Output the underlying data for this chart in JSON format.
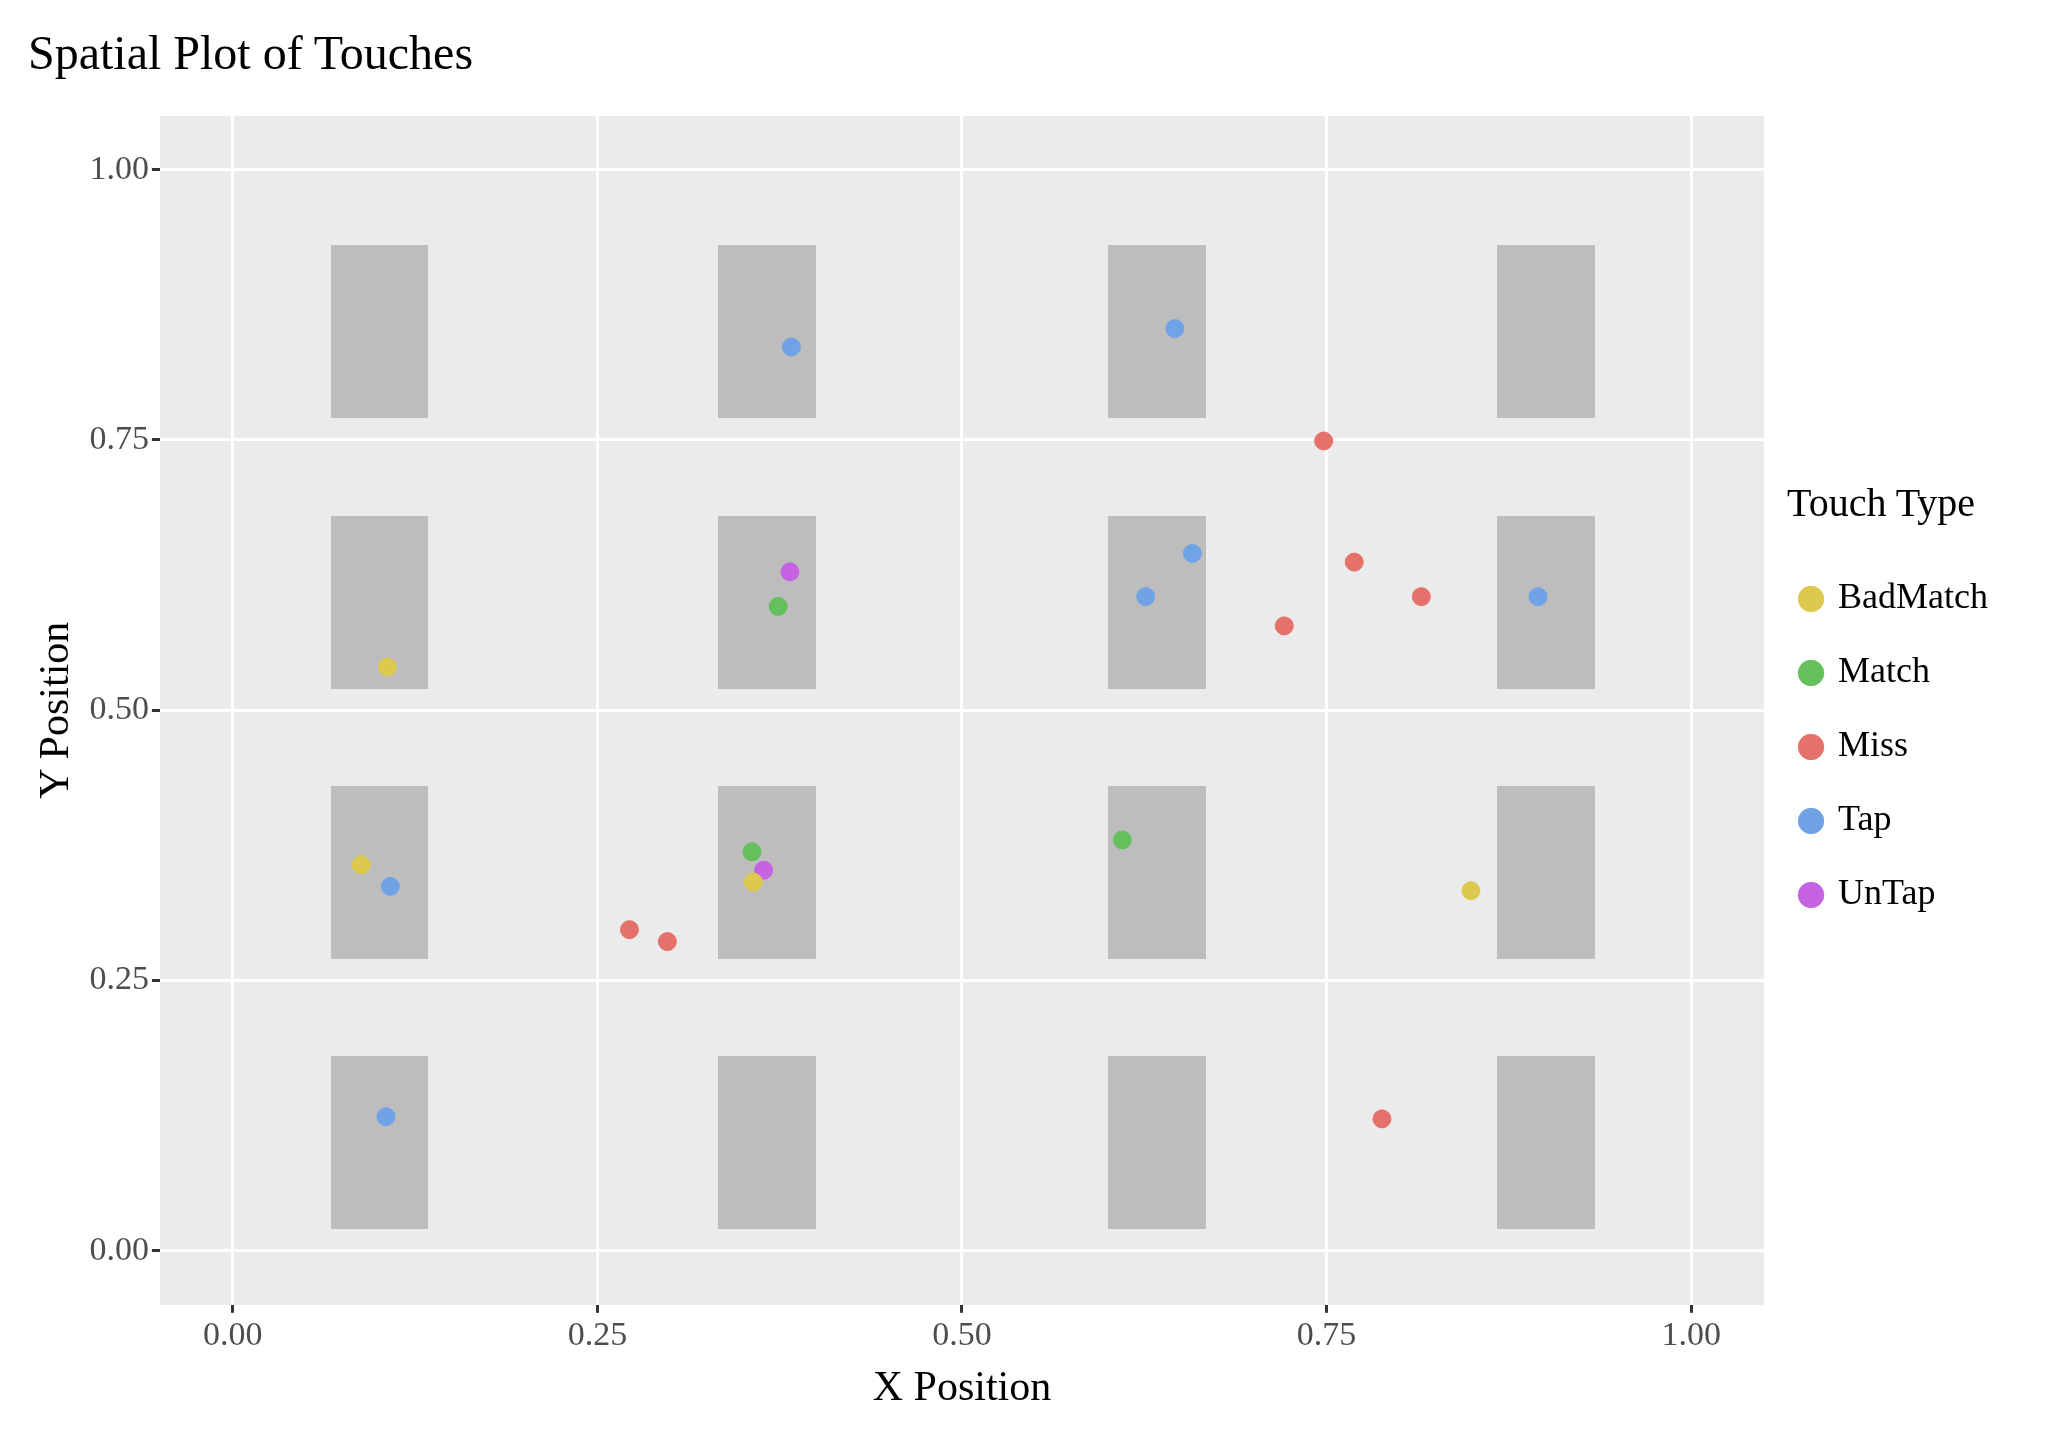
{
  "chart_data": {
    "type": "scatter",
    "title": "Spatial Plot of Touches",
    "xlabel": "X Position",
    "ylabel": "Y Position",
    "legend_title": "Touch Type",
    "legend": "right",
    "grid": true,
    "marker": "circle",
    "xlim": [
      -0.05,
      1.05
    ],
    "ylim": [
      -0.05,
      1.05
    ],
    "xticks": [
      {
        "value": 0,
        "label": "0.00"
      },
      {
        "value": 0.25,
        "label": "0.25"
      },
      {
        "value": 0.5,
        "label": "0.50"
      },
      {
        "value": 0.75,
        "label": "0.75"
      },
      {
        "value": 1,
        "label": "1.00"
      }
    ],
    "yticks": [
      {
        "value": 0,
        "label": "0.00"
      },
      {
        "value": 0.25,
        "label": "0.25"
      },
      {
        "value": 0.5,
        "label": "0.50"
      },
      {
        "value": 0.75,
        "label": "0.75"
      },
      {
        "value": 1,
        "label": "1.00"
      }
    ],
    "series": [
      {
        "name": "BadMatch",
        "color": "#dcc94e",
        "x": [
          0.106,
          0.088,
          0.357,
          0.849
        ],
        "values": [
          0.54,
          0.357,
          0.341,
          0.333
        ]
      },
      {
        "name": "Match",
        "color": "#64bf5c",
        "x": [
          0.374,
          0.356,
          0.61
        ],
        "values": [
          0.596,
          0.369,
          0.38
        ]
      },
      {
        "name": "Miss",
        "color": "#e4716a",
        "x": [
          0.748,
          0.769,
          0.815,
          0.721,
          0.272,
          0.298,
          0.788
        ],
        "values": [
          0.749,
          0.637,
          0.605,
          0.578,
          0.297,
          0.286,
          0.122
        ]
      },
      {
        "name": "Tap",
        "color": "#6fa3e6",
        "x": [
          0.383,
          0.646,
          0.658,
          0.626,
          0.895,
          0.108,
          0.105
        ],
        "values": [
          0.836,
          0.853,
          0.645,
          0.605,
          0.605,
          0.337,
          0.124
        ]
      },
      {
        "name": "UnTap",
        "color": "#c563e2",
        "x": [
          0.382,
          0.364
        ],
        "values": [
          0.628,
          0.352
        ]
      }
    ]
  }
}
